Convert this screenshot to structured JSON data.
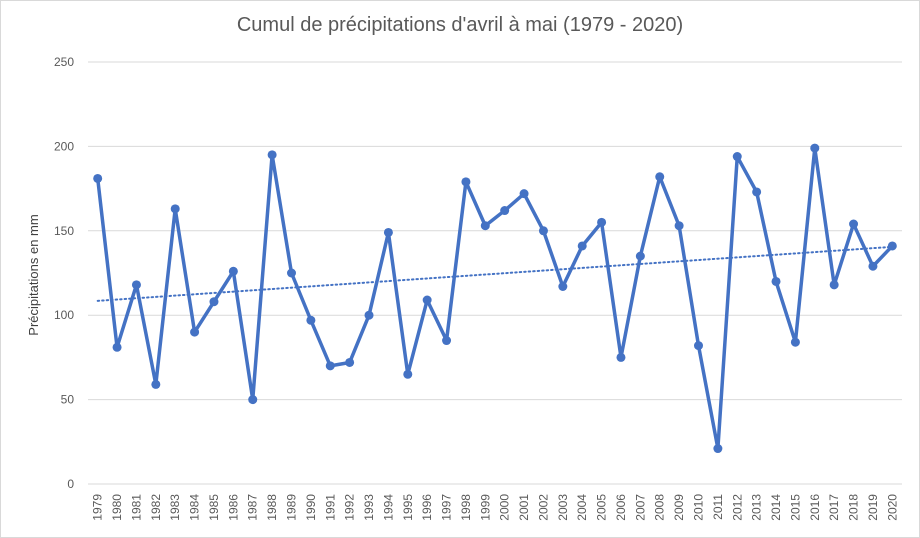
{
  "chart_data": {
    "type": "line",
    "title": "Cumul de précipitations d'avril à mai (1979 - 2020)",
    "xlabel": "",
    "ylabel": "Précipitations en mm",
    "ylim": [
      0,
      250
    ],
    "yticks": [
      0,
      50,
      100,
      150,
      200,
      250
    ],
    "grid": true,
    "categories": [
      "1979",
      "1980",
      "1981",
      "1982",
      "1983",
      "1984",
      "1985",
      "1986",
      "1987",
      "1988",
      "1989",
      "1990",
      "1991",
      "1992",
      "1993",
      "1994",
      "1995",
      "1996",
      "1997",
      "1998",
      "1999",
      "2000",
      "2001",
      "2002",
      "2003",
      "2004",
      "2005",
      "2006",
      "2007",
      "2008",
      "2009",
      "2010",
      "2011",
      "2012",
      "2013",
      "2014",
      "2015",
      "2016",
      "2017",
      "2018",
      "2019",
      "2020"
    ],
    "series": [
      {
        "values": [
          181,
          81,
          118,
          59,
          163,
          90,
          108,
          126,
          50,
          195,
          125,
          97,
          70,
          72,
          100,
          149,
          65,
          109,
          85,
          179,
          153,
          162,
          172,
          150,
          117,
          141,
          155,
          75,
          135,
          182,
          153,
          82,
          21,
          194,
          173,
          120,
          84,
          199,
          118,
          154,
          129,
          141
        ]
      }
    ],
    "trendline": {
      "style": "dotted",
      "start": 108.5,
      "end": 140.5
    },
    "colors": {
      "line": "#4472c4",
      "grid": "#d9d9d9",
      "text": "#595959"
    }
  }
}
